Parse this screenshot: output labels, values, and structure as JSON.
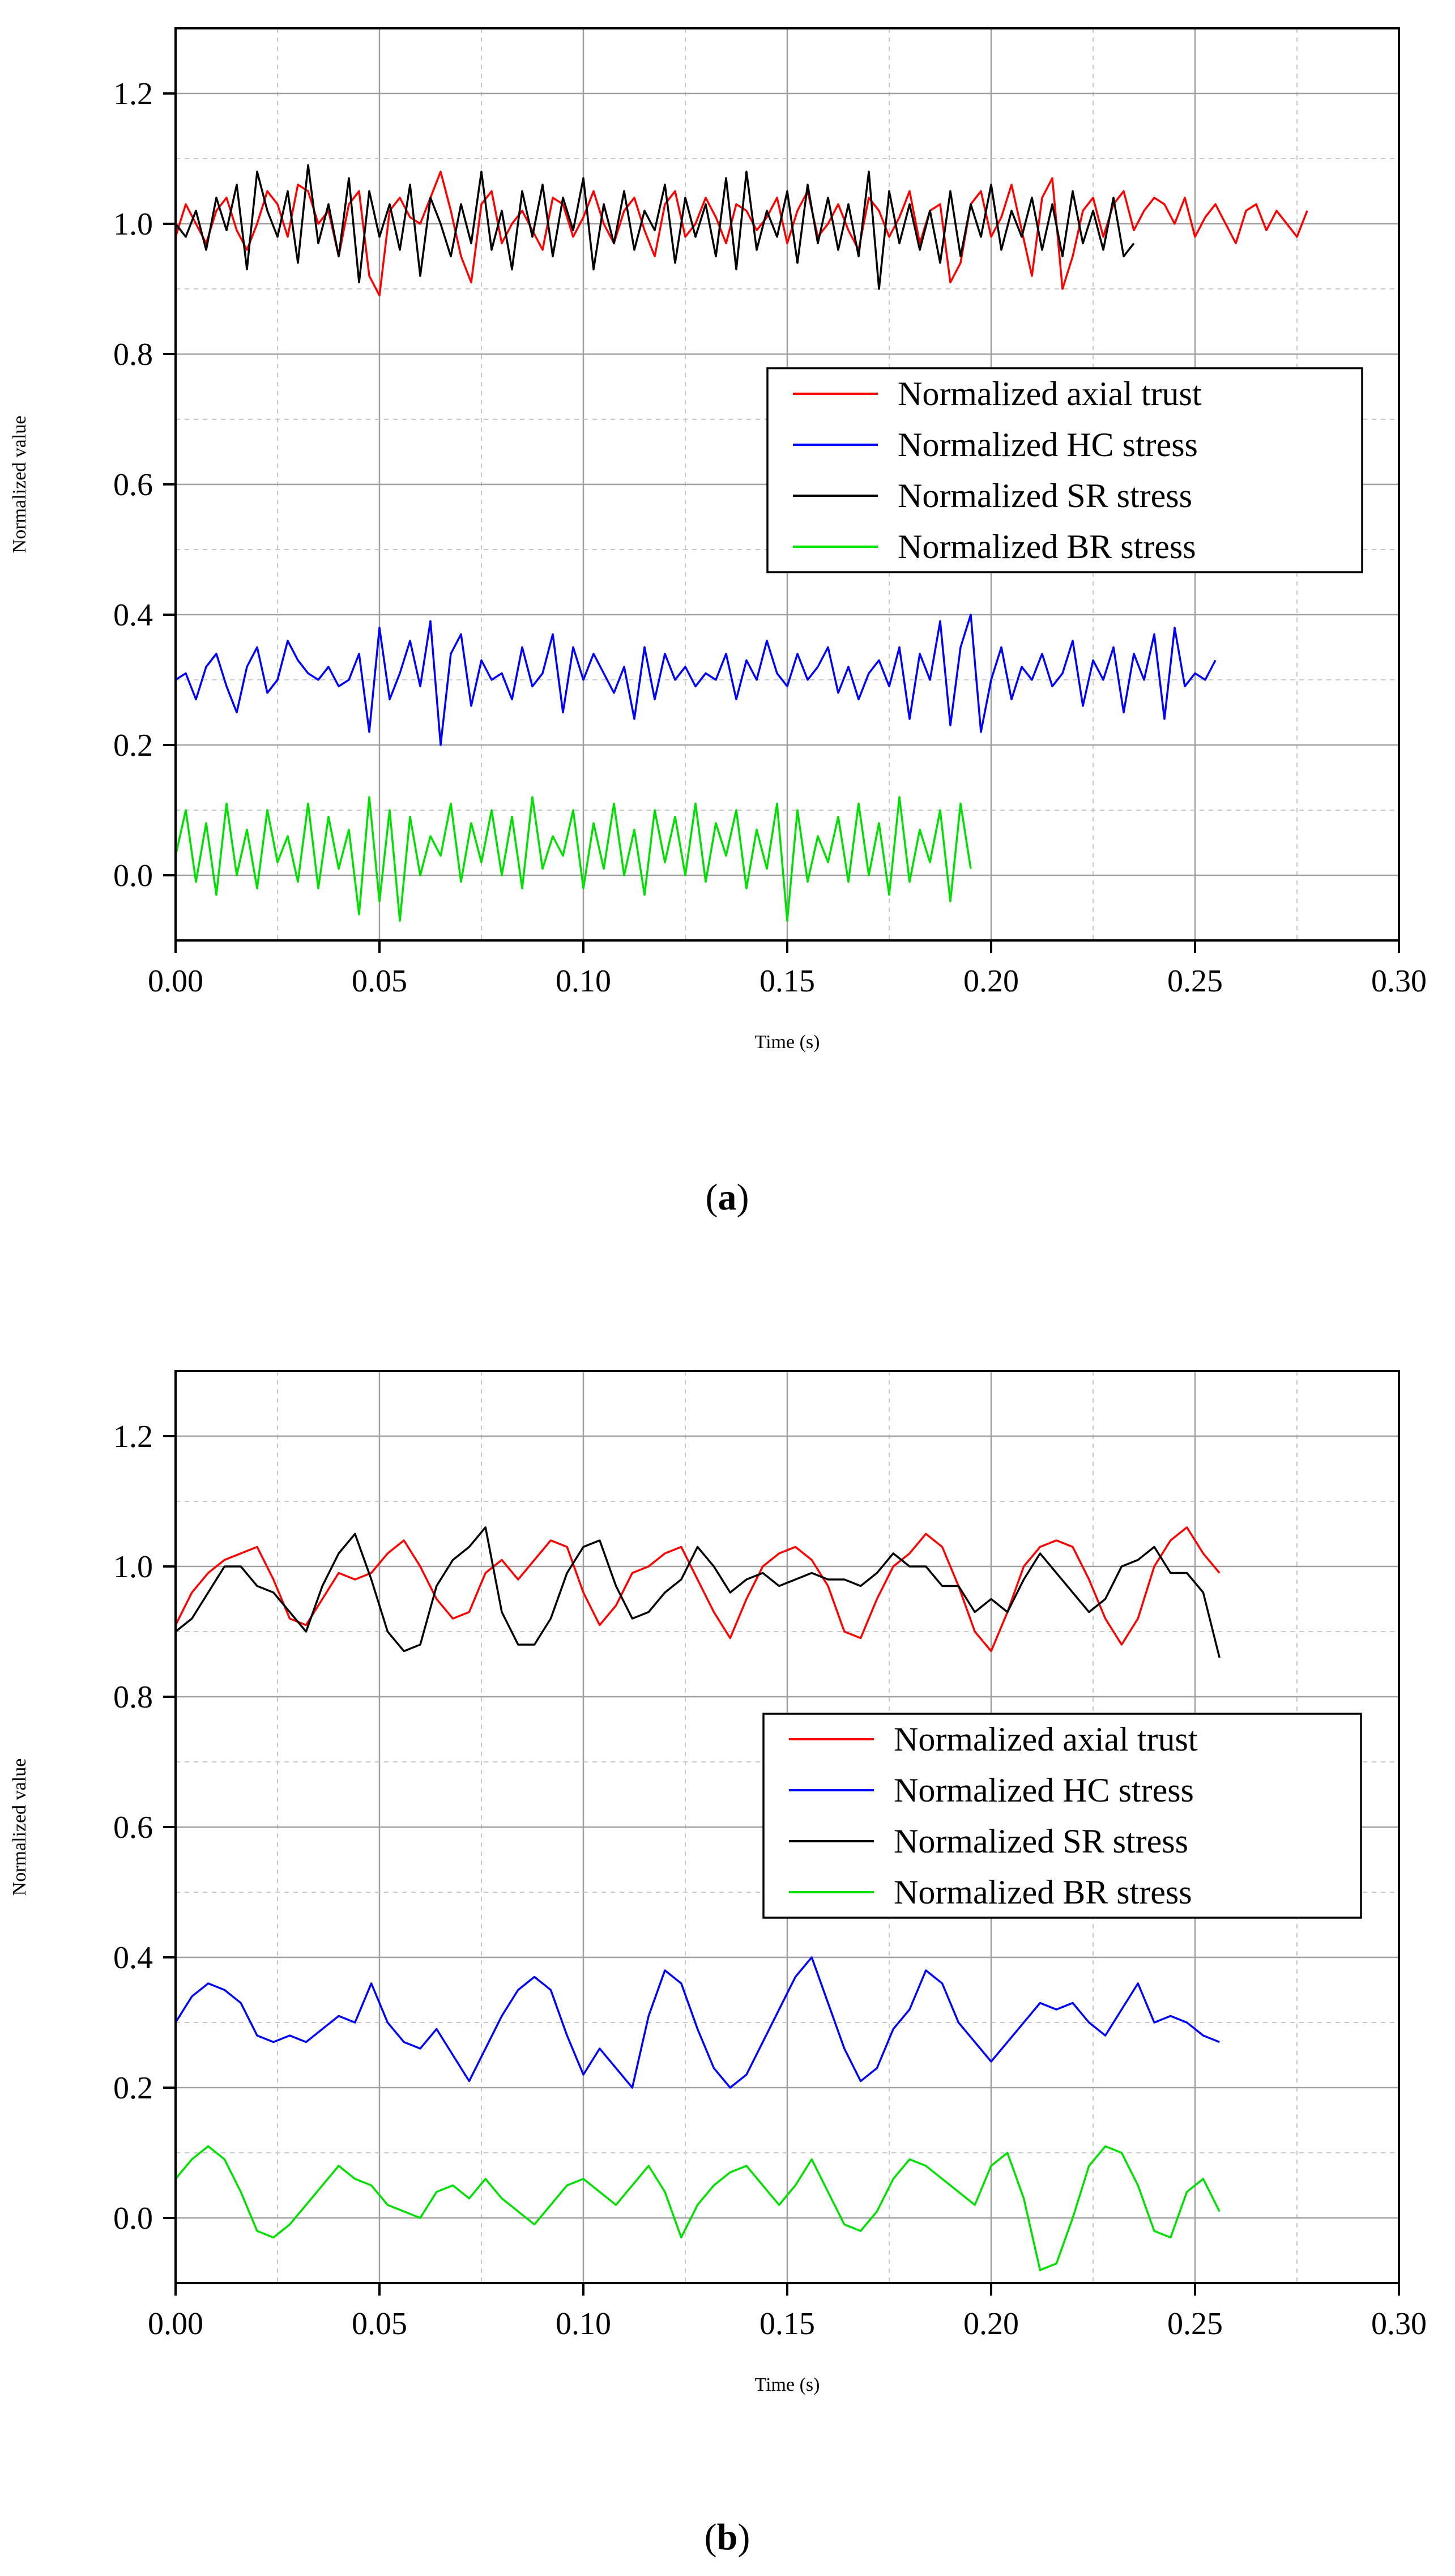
{
  "chart_data": [
    {
      "id": "a",
      "type": "line",
      "caption_label": "a",
      "xlabel": "Time (s)",
      "ylabel": "Normalized value",
      "xlim": [
        0.0,
        0.3
      ],
      "ylim": [
        -0.1,
        1.3
      ],
      "x_ticks": [
        "0.00",
        "0.05",
        "0.10",
        "0.15",
        "0.20",
        "0.25",
        "0.30"
      ],
      "y_ticks": [
        "0.0",
        "0.2",
        "0.4",
        "0.6",
        "0.8",
        "1.0",
        "1.2"
      ],
      "legend_position": "center-right",
      "x_start": 0.0,
      "x_step": 0.0025,
      "series": [
        {
          "name": "Normalized axial trust",
          "color": "#ff0000",
          "values": [
            0.98,
            1.03,
            1.0,
            0.97,
            1.02,
            1.04,
            0.99,
            0.96,
            1.0,
            1.05,
            1.03,
            0.98,
            1.06,
            1.05,
            1.0,
            1.02,
            0.95,
            1.03,
            1.05,
            0.92,
            0.89,
            1.02,
            1.04,
            1.01,
            1.0,
            1.04,
            1.08,
            1.02,
            0.95,
            0.91,
            1.03,
            1.05,
            0.97,
            1.0,
            1.02,
            0.99,
            0.96,
            1.04,
            1.03,
            0.98,
            1.01,
            1.05,
            1.0,
            0.97,
            1.02,
            1.04,
            0.99,
            0.95,
            1.03,
            1.05,
            0.98,
            1.0,
            1.04,
            1.01,
            0.97,
            1.03,
            1.02,
            0.99,
            1.01,
            1.04,
            0.97,
            1.02,
            1.05,
            0.98,
            1.0,
            1.03,
            0.99,
            0.96,
            1.04,
            1.02,
            0.98,
            1.01,
            1.05,
            0.97,
            1.02,
            1.03,
            0.91,
            0.94,
            1.03,
            1.05,
            0.98,
            1.01,
            1.06,
            0.99,
            0.92,
            1.04,
            1.07,
            0.9,
            0.95,
            1.02,
            1.04,
            0.98,
            1.03,
            1.05,
            0.99,
            1.02,
            1.04,
            1.03,
            1.0,
            1.04,
            0.98,
            1.01,
            1.03,
            1.0,
            0.97,
            1.02,
            1.03,
            0.99,
            1.02,
            1.0,
            0.98,
            1.02
          ]
        },
        {
          "name": "Normalized HC stress",
          "color": "#0000ff",
          "values": [
            0.3,
            0.31,
            0.27,
            0.32,
            0.34,
            0.29,
            0.25,
            0.32,
            0.35,
            0.28,
            0.3,
            0.36,
            0.33,
            0.31,
            0.3,
            0.32,
            0.29,
            0.3,
            0.34,
            0.22,
            0.38,
            0.27,
            0.31,
            0.36,
            0.29,
            0.39,
            0.2,
            0.34,
            0.37,
            0.26,
            0.33,
            0.3,
            0.31,
            0.27,
            0.35,
            0.29,
            0.31,
            0.37,
            0.25,
            0.35,
            0.3,
            0.34,
            0.31,
            0.28,
            0.32,
            0.24,
            0.35,
            0.27,
            0.34,
            0.3,
            0.32,
            0.29,
            0.31,
            0.3,
            0.34,
            0.27,
            0.33,
            0.3,
            0.36,
            0.31,
            0.29,
            0.34,
            0.3,
            0.32,
            0.35,
            0.28,
            0.32,
            0.27,
            0.31,
            0.33,
            0.29,
            0.35,
            0.24,
            0.34,
            0.3,
            0.39,
            0.23,
            0.35,
            0.4,
            0.22,
            0.3,
            0.35,
            0.27,
            0.32,
            0.3,
            0.34,
            0.29,
            0.31,
            0.36,
            0.26,
            0.33,
            0.3,
            0.35,
            0.25,
            0.34,
            0.3,
            0.37,
            0.24,
            0.38,
            0.29,
            0.31,
            0.3,
            0.33
          ]
        },
        {
          "name": "Normalized SR stress",
          "color": "#000000",
          "values": [
            1.0,
            0.98,
            1.02,
            0.96,
            1.04,
            0.99,
            1.06,
            0.93,
            1.08,
            1.02,
            0.98,
            1.05,
            0.94,
            1.09,
            0.97,
            1.03,
            0.95,
            1.07,
            0.91,
            1.05,
            0.98,
            1.03,
            0.96,
            1.06,
            0.92,
            1.04,
            1.0,
            0.95,
            1.03,
            0.97,
            1.08,
            0.96,
            1.02,
            0.93,
            1.05,
            0.98,
            1.06,
            0.95,
            1.04,
            0.99,
            1.07,
            0.93,
            1.03,
            0.97,
            1.05,
            0.96,
            1.02,
            0.99,
            1.06,
            0.94,
            1.04,
            0.98,
            1.03,
            0.95,
            1.07,
            0.93,
            1.08,
            0.96,
            1.02,
            0.98,
            1.05,
            0.94,
            1.06,
            0.97,
            1.04,
            0.96,
            1.03,
            0.95,
            1.08,
            0.9,
            1.05,
            0.97,
            1.03,
            0.96,
            1.02,
            0.94,
            1.05,
            0.95,
            1.03,
            0.98,
            1.06,
            0.96,
            1.02,
            0.98,
            1.04,
            0.96,
            1.03,
            0.95,
            1.05,
            0.97,
            1.02,
            0.96,
            1.04,
            0.95,
            0.97
          ]
        },
        {
          "name": "Normalized BR stress",
          "color": "#00e000",
          "values": [
            0.03,
            0.1,
            -0.01,
            0.08,
            -0.03,
            0.11,
            0.0,
            0.07,
            -0.02,
            0.1,
            0.02,
            0.06,
            -0.01,
            0.11,
            -0.02,
            0.09,
            0.01,
            0.07,
            -0.06,
            0.12,
            -0.04,
            0.1,
            -0.07,
            0.09,
            0.0,
            0.06,
            0.03,
            0.11,
            -0.01,
            0.08,
            0.02,
            0.1,
            0.0,
            0.09,
            -0.02,
            0.12,
            0.01,
            0.06,
            0.03,
            0.1,
            -0.02,
            0.08,
            0.01,
            0.11,
            0.0,
            0.07,
            -0.03,
            0.1,
            0.02,
            0.09,
            0.0,
            0.11,
            -0.01,
            0.08,
            0.03,
            0.1,
            -0.02,
            0.07,
            0.01,
            0.11,
            -0.07,
            0.1,
            -0.01,
            0.06,
            0.02,
            0.09,
            -0.01,
            0.11,
            0.0,
            0.08,
            -0.03,
            0.12,
            -0.01,
            0.07,
            0.02,
            0.1,
            -0.04,
            0.11,
            0.01
          ]
        }
      ]
    },
    {
      "id": "b",
      "type": "line",
      "caption_label": "b",
      "xlabel": "Time (s)",
      "ylabel": "Normalized value",
      "xlim": [
        0.0,
        0.3
      ],
      "ylim": [
        -0.1,
        1.3
      ],
      "x_ticks": [
        "0.00",
        "0.05",
        "0.10",
        "0.15",
        "0.20",
        "0.25",
        "0.30"
      ],
      "y_ticks": [
        "0.0",
        "0.2",
        "0.4",
        "0.6",
        "0.8",
        "1.0",
        "1.2"
      ],
      "legend_position": "center-right",
      "x_start": 0.0,
      "x_step": 0.004,
      "series": [
        {
          "name": "Normalized axial trust",
          "color": "#ff0000",
          "values": [
            0.91,
            0.96,
            0.99,
            1.01,
            1.02,
            1.03,
            0.98,
            0.92,
            0.91,
            0.95,
            0.99,
            0.98,
            0.99,
            1.02,
            1.04,
            1.0,
            0.95,
            0.92,
            0.93,
            0.99,
            1.01,
            0.98,
            1.01,
            1.04,
            1.03,
            0.96,
            0.91,
            0.94,
            0.99,
            1.0,
            1.02,
            1.03,
            0.98,
            0.93,
            0.89,
            0.95,
            1.0,
            1.02,
            1.03,
            1.01,
            0.97,
            0.9,
            0.89,
            0.95,
            1.0,
            1.02,
            1.05,
            1.03,
            0.97,
            0.9,
            0.87,
            0.93,
            1.0,
            1.03,
            1.04,
            1.03,
            0.98,
            0.92,
            0.88,
            0.92,
            1.0,
            1.04,
            1.06,
            1.02,
            0.99
          ]
        },
        {
          "name": "Normalized HC stress",
          "color": "#0000ff",
          "values": [
            0.3,
            0.34,
            0.36,
            0.35,
            0.33,
            0.28,
            0.27,
            0.28,
            0.27,
            0.29,
            0.31,
            0.3,
            0.36,
            0.3,
            0.27,
            0.26,
            0.29,
            0.25,
            0.21,
            0.26,
            0.31,
            0.35,
            0.37,
            0.35,
            0.28,
            0.22,
            0.26,
            0.23,
            0.2,
            0.31,
            0.38,
            0.36,
            0.29,
            0.23,
            0.2,
            0.22,
            0.27,
            0.32,
            0.37,
            0.4,
            0.33,
            0.26,
            0.21,
            0.23,
            0.29,
            0.32,
            0.38,
            0.36,
            0.3,
            0.27,
            0.24,
            0.27,
            0.3,
            0.33,
            0.32,
            0.33,
            0.3,
            0.28,
            0.32,
            0.36,
            0.3,
            0.31,
            0.3,
            0.28,
            0.27
          ]
        },
        {
          "name": "Normalized SR stress",
          "color": "#000000",
          "values": [
            0.9,
            0.92,
            0.96,
            1.0,
            1.0,
            0.97,
            0.96,
            0.93,
            0.9,
            0.97,
            1.02,
            1.05,
            0.98,
            0.9,
            0.87,
            0.88,
            0.97,
            1.01,
            1.03,
            1.06,
            0.93,
            0.88,
            0.88,
            0.92,
            0.99,
            1.03,
            1.04,
            0.97,
            0.92,
            0.93,
            0.96,
            0.98,
            1.03,
            1.0,
            0.96,
            0.98,
            0.99,
            0.97,
            0.98,
            0.99,
            0.98,
            0.98,
            0.97,
            0.99,
            1.02,
            1.0,
            1.0,
            0.97,
            0.97,
            0.93,
            0.95,
            0.93,
            0.98,
            1.02,
            0.99,
            0.96,
            0.93,
            0.95,
            1.0,
            1.01,
            1.03,
            0.99,
            0.99,
            0.96,
            0.86
          ]
        },
        {
          "name": "Normalized BR stress",
          "color": "#00e000",
          "values": [
            0.06,
            0.09,
            0.11,
            0.09,
            0.04,
            -0.02,
            -0.03,
            -0.01,
            0.02,
            0.05,
            0.08,
            0.06,
            0.05,
            0.02,
            0.01,
            0.0,
            0.04,
            0.05,
            0.03,
            0.06,
            0.03,
            0.01,
            -0.01,
            0.02,
            0.05,
            0.06,
            0.04,
            0.02,
            0.05,
            0.08,
            0.04,
            -0.03,
            0.02,
            0.05,
            0.07,
            0.08,
            0.05,
            0.02,
            0.05,
            0.09,
            0.04,
            -0.01,
            -0.02,
            0.01,
            0.06,
            0.09,
            0.08,
            0.06,
            0.04,
            0.02,
            0.08,
            0.1,
            0.03,
            -0.08,
            -0.07,
            0.0,
            0.08,
            0.11,
            0.1,
            0.05,
            -0.02,
            -0.03,
            0.04,
            0.06,
            0.01
          ]
        }
      ]
    }
  ]
}
